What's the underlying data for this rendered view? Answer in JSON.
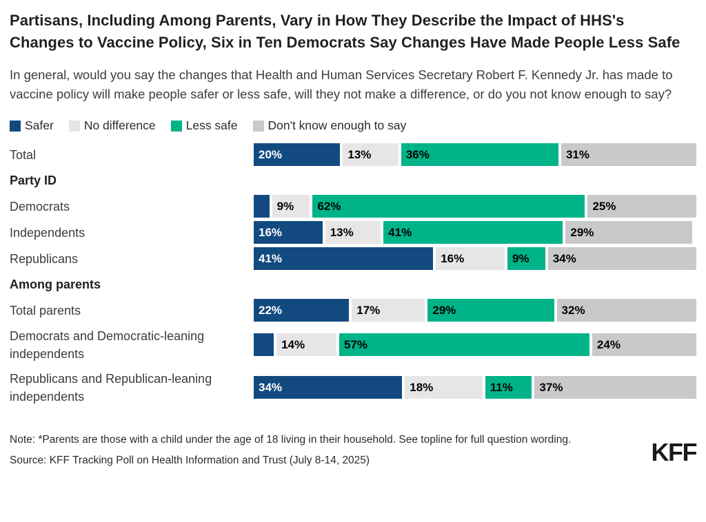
{
  "title": "Partisans, Including Among Parents, Vary in How They Describe the Impact of HHS's Changes to Vaccine Policy, Six in Ten Democrats Say Changes Have Made People Less Safe",
  "subtitle": "In general, would you say the changes that Health and Human Services Secretary Robert F. Kennedy Jr. has made to vaccine policy will make people safer or less safe, will they not make a difference, or do you not know enough to say?",
  "legend": [
    {
      "label": "Safer",
      "color": "#124a80"
    },
    {
      "label": "No difference",
      "color": "#e6e6e6"
    },
    {
      "label": "Less safe",
      "color": "#00b388"
    },
    {
      "label": "Don't know enough to say",
      "color": "#c9c9c9"
    }
  ],
  "chart_data": {
    "type": "bar",
    "orientation": "horizontal-stacked",
    "unit": "%",
    "series_names": [
      "Safer",
      "No difference",
      "Less safe",
      "Don't know enough to say"
    ],
    "colors": [
      "#124a80",
      "#e6e6e6",
      "#00b388",
      "#c9c9c9"
    ],
    "text_colors": [
      "#ffffff",
      "#000000",
      "#000000",
      "#000000"
    ],
    "categories": [
      "Total",
      "Democrats",
      "Independents",
      "Republicans",
      "Total parents",
      "Democrats and Democratic-leaning independents",
      "Republicans and Republican-leaning independents"
    ],
    "series": [
      {
        "name": "Safer",
        "values": [
          20,
          4,
          16,
          41,
          22,
          5,
          34
        ]
      },
      {
        "name": "No difference",
        "values": [
          13,
          9,
          13,
          16,
          17,
          14,
          18
        ]
      },
      {
        "name": "Less safe",
        "values": [
          36,
          62,
          41,
          9,
          29,
          57,
          11
        ]
      },
      {
        "name": "Don't know enough to say",
        "values": [
          31,
          25,
          29,
          34,
          32,
          24,
          37
        ]
      }
    ],
    "rows": [
      {
        "kind": "bar",
        "label": "Total",
        "two_line": false,
        "segments": [
          {
            "pct": 20,
            "text": "20%"
          },
          {
            "pct": 13,
            "text": "13%"
          },
          {
            "pct": 36,
            "text": "36%"
          },
          {
            "pct": 31,
            "text": "31%"
          }
        ]
      },
      {
        "kind": "header",
        "label": "Party ID"
      },
      {
        "kind": "bar",
        "label": "Democrats",
        "two_line": false,
        "segments": [
          {
            "pct": 4,
            "text": ""
          },
          {
            "pct": 9,
            "text": "9%"
          },
          {
            "pct": 62,
            "text": "62%"
          },
          {
            "pct": 25,
            "text": "25%"
          }
        ]
      },
      {
        "kind": "bar",
        "label": "Independents",
        "two_line": false,
        "segments": [
          {
            "pct": 16,
            "text": "16%"
          },
          {
            "pct": 13,
            "text": "13%"
          },
          {
            "pct": 41,
            "text": "41%"
          },
          {
            "pct": 29,
            "text": "29%"
          }
        ]
      },
      {
        "kind": "bar",
        "label": "Republicans",
        "two_line": false,
        "segments": [
          {
            "pct": 41,
            "text": "41%"
          },
          {
            "pct": 16,
            "text": "16%"
          },
          {
            "pct": 9,
            "text": "9%"
          },
          {
            "pct": 34,
            "text": "34%"
          }
        ]
      },
      {
        "kind": "header",
        "label": "Among parents"
      },
      {
        "kind": "bar",
        "label": "Total parents",
        "two_line": false,
        "segments": [
          {
            "pct": 22,
            "text": "22%"
          },
          {
            "pct": 17,
            "text": "17%"
          },
          {
            "pct": 29,
            "text": "29%"
          },
          {
            "pct": 32,
            "text": "32%"
          }
        ]
      },
      {
        "kind": "bar",
        "label": "Democrats and Democratic-leaning independents",
        "two_line": true,
        "segments": [
          {
            "pct": 5,
            "text": ""
          },
          {
            "pct": 14,
            "text": "14%"
          },
          {
            "pct": 57,
            "text": "57%"
          },
          {
            "pct": 24,
            "text": "24%"
          }
        ]
      },
      {
        "kind": "bar",
        "label": "Republicans and Republican-leaning independents",
        "two_line": true,
        "segments": [
          {
            "pct": 34,
            "text": "34%"
          },
          {
            "pct": 18,
            "text": "18%"
          },
          {
            "pct": 11,
            "text": "11%"
          },
          {
            "pct": 37,
            "text": "37%"
          }
        ]
      }
    ]
  },
  "footer": {
    "note": "Note: *Parents are those with a child under the age of 18 living in their household. See topline for full question wording.",
    "source": "Source: KFF Tracking Poll on Health Information and Trust (July 8-14, 2025)",
    "logo": "KFF"
  }
}
